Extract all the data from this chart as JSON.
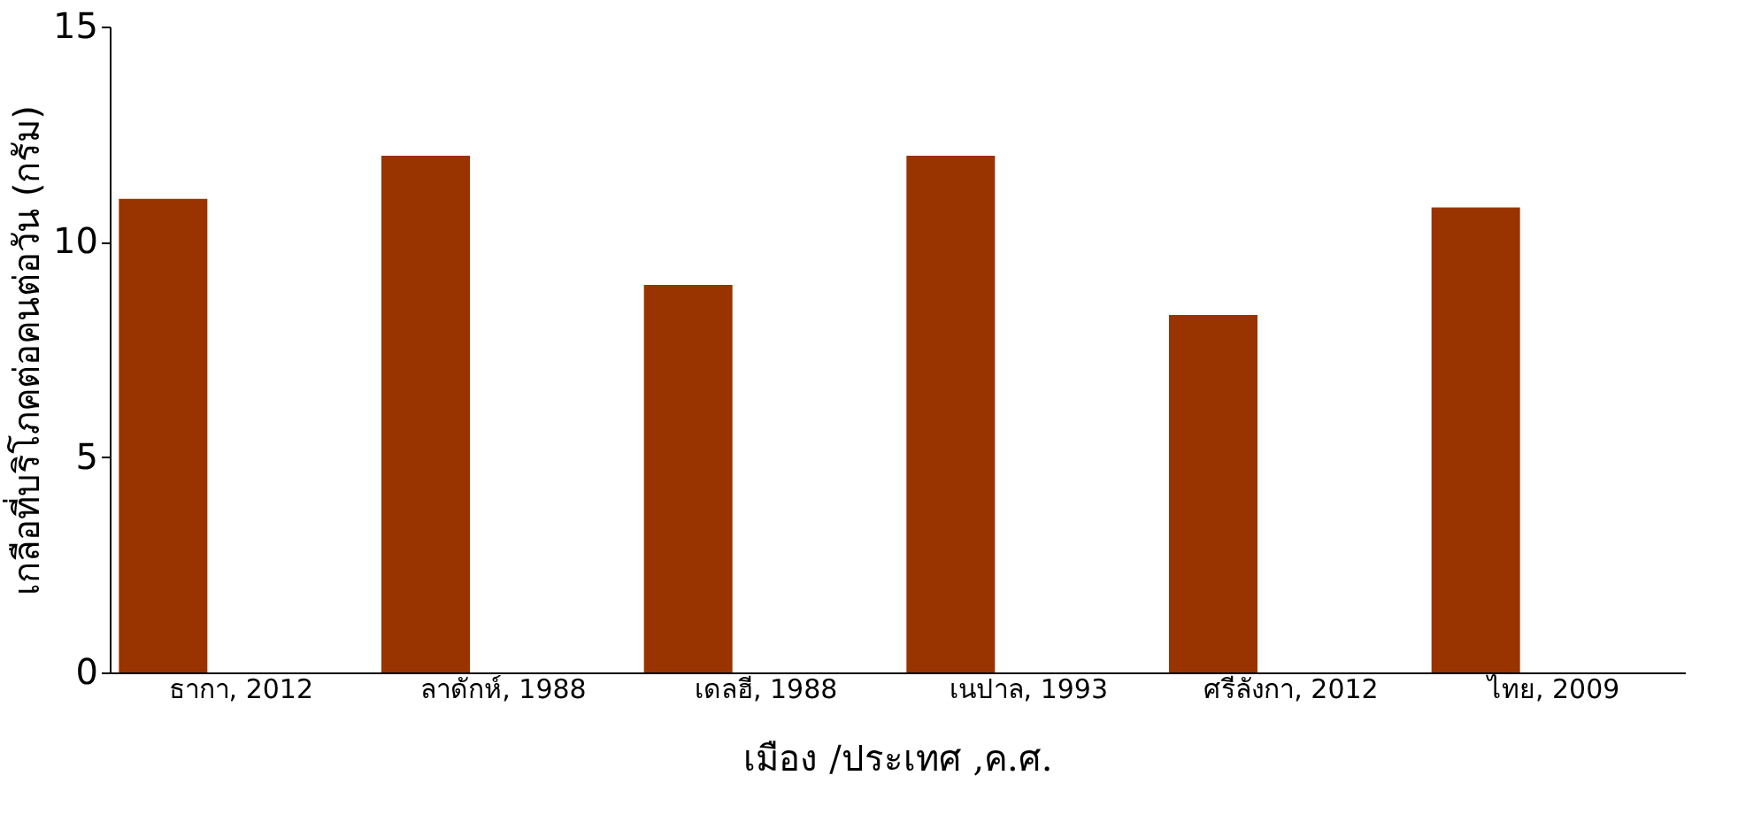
{
  "chart_data": {
    "type": "bar",
    "xlabel": "เมือง /ประเทศ ,ค.ศ.",
    "ylabel": "เกลือที่บริโภคต่อคนต่อวัน (กรัม)",
    "categories": [
      "ธากา, 2012",
      "ลาดักห์, 1988",
      "เดลฮี, 1988",
      "เนปาล, 1993",
      "ศรีลังกา, 2012",
      "ไทย, 2009"
    ],
    "series": [
      {
        "color": "#993300",
        "values": [
          11,
          12,
          9,
          12,
          8.3,
          10.8
        ]
      }
    ],
    "ylim": [
      0,
      15
    ],
    "yticks": [
      0,
      5,
      10,
      15
    ],
    "grid": false,
    "legend": false
  }
}
